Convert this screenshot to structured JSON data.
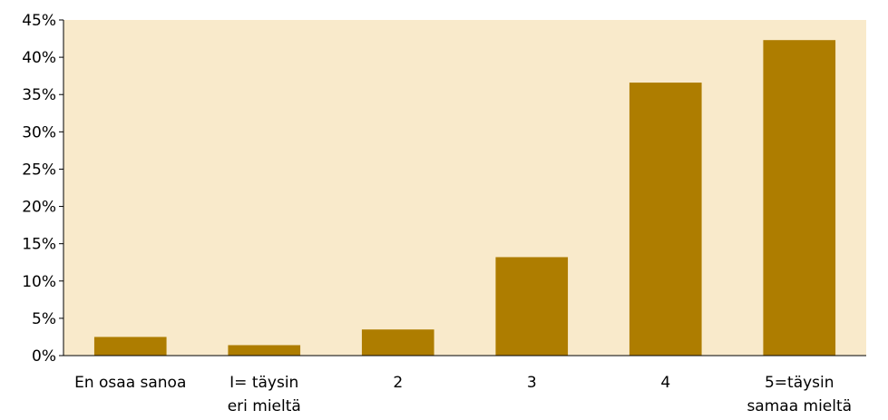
{
  "chart_data": {
    "type": "bar",
    "categories": [
      [
        "En osaa sanoa"
      ],
      [
        "I= täysin",
        "eri mieltä"
      ],
      [
        "2"
      ],
      [
        "3"
      ],
      [
        "4"
      ],
      [
        "5=täysin",
        "samaa mieltä"
      ]
    ],
    "values": [
      2.5,
      1.4,
      3.5,
      13.2,
      36.6,
      42.3
    ],
    "ylim": [
      0,
      45
    ],
    "ytick_step": 5,
    "ytick_suffix": "%",
    "title": "",
    "xlabel": "",
    "ylabel": "",
    "grid": false,
    "legend": "none",
    "colors": {
      "bar": "#AE7D00",
      "plot_background": "#F9EACB",
      "axis": "#000000"
    }
  }
}
